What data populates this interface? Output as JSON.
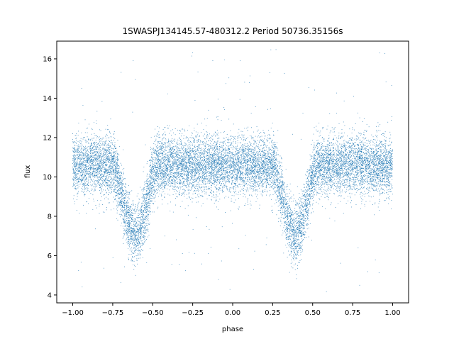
{
  "chart_data": {
    "type": "scatter",
    "title": "1SWASPJ134145.57-480312.2 Period 50736.35156s",
    "xlabel": "phase",
    "ylabel": "flux",
    "xlim": [
      -1.1,
      1.1
    ],
    "ylim": [
      3.6,
      16.9
    ],
    "x_ticks": [
      -1.0,
      -0.75,
      -0.5,
      -0.25,
      0.0,
      0.25,
      0.5,
      0.75,
      1.0
    ],
    "x_tick_labels": [
      "−1.00",
      "−0.75",
      "−0.50",
      "−0.25",
      "0.00",
      "0.25",
      "0.50",
      "0.75",
      "1.00"
    ],
    "y_ticks": [
      4,
      6,
      8,
      10,
      12,
      14,
      16
    ],
    "y_tick_labels": [
      "4",
      "6",
      "8",
      "10",
      "12",
      "14",
      "16"
    ],
    "grid": false,
    "marker_color": "#1f77b4",
    "series": [
      {
        "phase_range": [
          -1.0,
          1.0
        ],
        "baseline_flux": 10.6,
        "scatter_sd": 0.75,
        "eclipses": [
          {
            "phase_center": -0.61,
            "half_width": 0.14,
            "min_flux": 7.1
          },
          {
            "phase_center": 0.39,
            "half_width": 0.14,
            "min_flux": 7.1
          }
        ],
        "point_count": 14000,
        "outlier_flux_range": [
          4.0,
          16.5
        ]
      }
    ]
  }
}
